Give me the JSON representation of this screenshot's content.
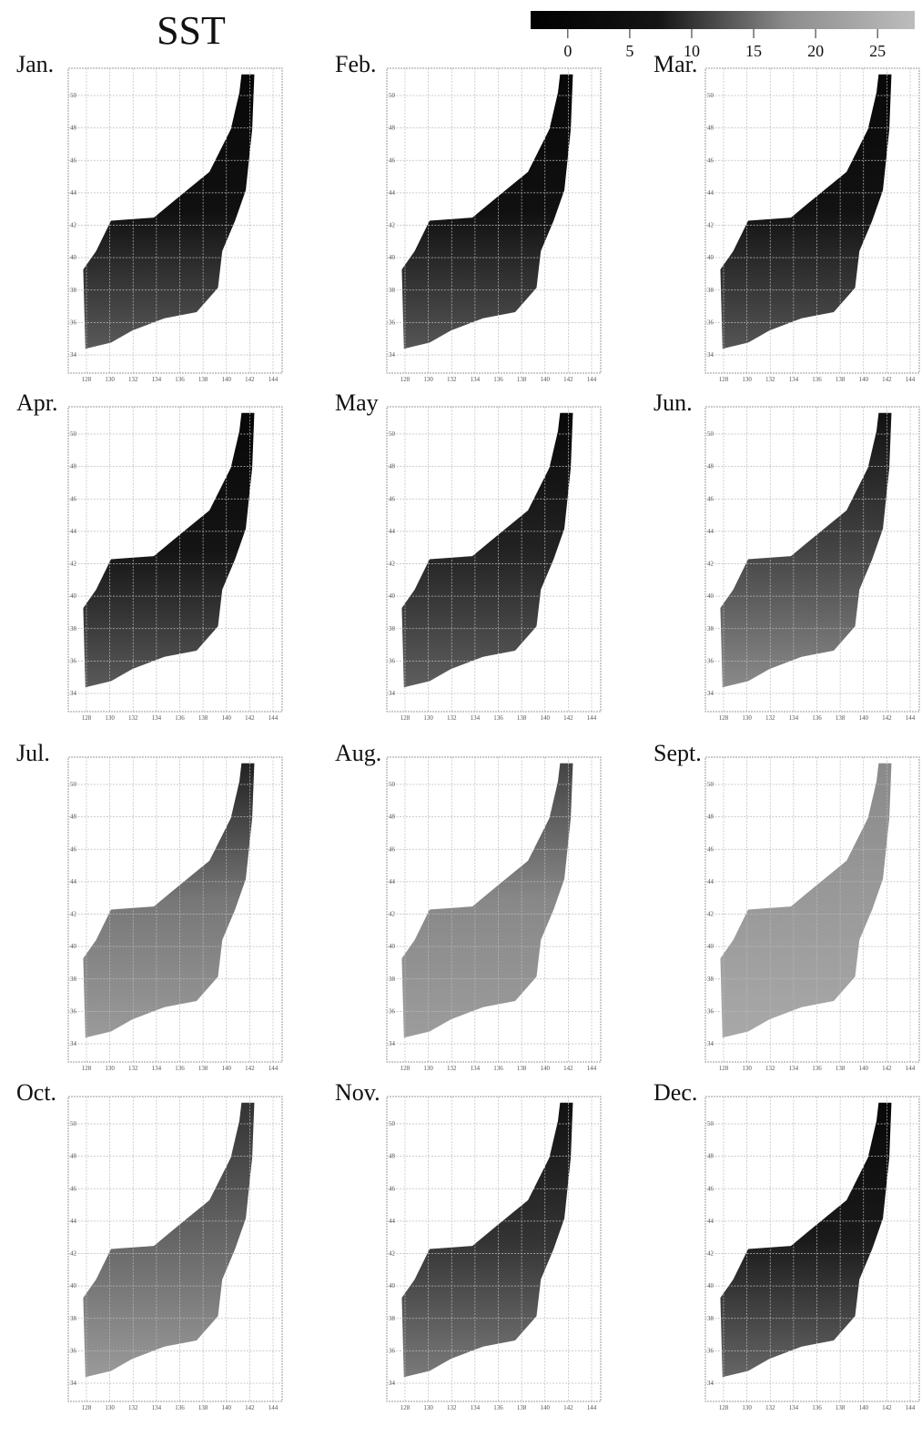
{
  "title": "SST",
  "colorbar": {
    "lim": [
      -3,
      28
    ],
    "ticks": [
      0,
      5,
      10,
      15,
      20,
      25
    ],
    "colors": [
      "#000000",
      "#151515",
      "#8c8c8c",
      "#bdbdbd"
    ]
  },
  "lon_ticks": [
    128,
    130,
    132,
    134,
    136,
    138,
    140,
    142,
    144
  ],
  "lat_ticks": [
    34,
    36,
    38,
    40,
    42,
    44,
    46,
    48,
    50
  ],
  "panels": [
    {
      "label": "Jan.",
      "colors": [
        "#080808",
        "#101010",
        "#5a5a5a"
      ]
    },
    {
      "label": "Feb.",
      "colors": [
        "#080808",
        "#101010",
        "#555555"
      ]
    },
    {
      "label": "Mar.",
      "colors": [
        "#080808",
        "#121212",
        "#555555"
      ]
    },
    {
      "label": "Apr.",
      "colors": [
        "#080808",
        "#141414",
        "#5a5a5a"
      ]
    },
    {
      "label": "May",
      "colors": [
        "#080808",
        "#222222",
        "#5e5e5e"
      ]
    },
    {
      "label": "Jun.",
      "colors": [
        "#111111",
        "#444444",
        "#8a8a8a"
      ]
    },
    {
      "label": "Jul.",
      "colors": [
        "#222222",
        "#777777",
        "#9a9a9a"
      ]
    },
    {
      "label": "Aug.",
      "colors": [
        "#444444",
        "#888888",
        "#9c9c9c"
      ]
    },
    {
      "label": "Sept.",
      "colors": [
        "#8a8a8a",
        "#999999",
        "#a8a8a8"
      ]
    },
    {
      "label": "Oct.",
      "colors": [
        "#333333",
        "#666666",
        "#9a9a9a"
      ]
    },
    {
      "label": "Nov.",
      "colors": [
        "#111111",
        "#333333",
        "#7a7a7a"
      ]
    },
    {
      "label": "Dec.",
      "colors": [
        "#080808",
        "#1a1a1a",
        "#666666"
      ]
    }
  ]
}
